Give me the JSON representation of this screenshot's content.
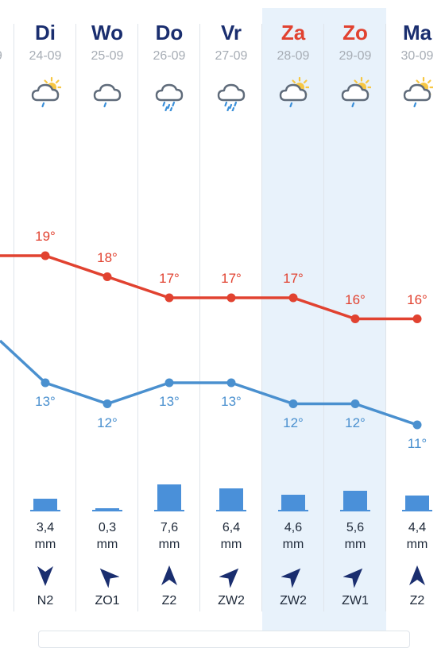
{
  "colors": {
    "high_temp": "#e14230",
    "low_temp": "#4a90cf",
    "weekend_bg": "#e8f2fb",
    "day_name": "#1a2e6f",
    "weekend_day_name": "#e14230",
    "precip": "#4a90d9"
  },
  "partial_left": {
    "date_fragment": "9",
    "high_temp": 19,
    "low_temp": 15
  },
  "days": [
    {
      "name": "Di",
      "date": "24-09",
      "weekend": false,
      "icon": "partly-cloudy-sun-drizzle-icon",
      "high": 19,
      "high_label": "19°",
      "low": 13,
      "low_label": "13°",
      "precip_mm": 3.4,
      "precip_label": "3,4",
      "unit": "mm",
      "wind_dir": "N",
      "wind_label": "N2"
    },
    {
      "name": "Wo",
      "date": "25-09",
      "weekend": false,
      "icon": "cloud-drizzle-icon",
      "high": 18,
      "high_label": "18°",
      "low": 12,
      "low_label": "12°",
      "precip_mm": 0.3,
      "precip_label": "0,3",
      "unit": "mm",
      "wind_dir": "ZO",
      "wind_label": "ZO1"
    },
    {
      "name": "Do",
      "date": "26-09",
      "weekend": false,
      "icon": "cloud-heavy-rain-icon",
      "high": 17,
      "high_label": "17°",
      "low": 13,
      "low_label": "13°",
      "precip_mm": 7.6,
      "precip_label": "7,6",
      "unit": "mm",
      "wind_dir": "Z",
      "wind_label": "Z2"
    },
    {
      "name": "Vr",
      "date": "27-09",
      "weekend": false,
      "icon": "cloud-heavy-rain-icon",
      "high": 17,
      "high_label": "17°",
      "low": 13,
      "low_label": "13°",
      "precip_mm": 6.4,
      "precip_label": "6,4",
      "unit": "mm",
      "wind_dir": "ZW",
      "wind_label": "ZW2"
    },
    {
      "name": "Za",
      "date": "28-09",
      "weekend": true,
      "icon": "partly-cloudy-sun-drizzle-icon",
      "high": 17,
      "high_label": "17°",
      "low": 12,
      "low_label": "12°",
      "precip_mm": 4.6,
      "precip_label": "4,6",
      "unit": "mm",
      "wind_dir": "ZW",
      "wind_label": "ZW2"
    },
    {
      "name": "Zo",
      "date": "29-09",
      "weekend": true,
      "icon": "partly-cloudy-sun-drizzle-icon",
      "high": 16,
      "high_label": "16°",
      "low": 12,
      "low_label": "12°",
      "precip_mm": 5.6,
      "precip_label": "5,6",
      "unit": "mm",
      "wind_dir": "ZW",
      "wind_label": "ZW1"
    },
    {
      "name": "Ma",
      "date": "30-09",
      "weekend": false,
      "icon": "partly-cloudy-sun-drizzle-icon",
      "high": 16,
      "high_label": "16°",
      "low": 11,
      "low_label": "11°",
      "precip_mm": 4.4,
      "precip_label": "4,4",
      "unit": "mm",
      "wind_dir": "Z",
      "wind_label": "Z2"
    }
  ]
}
